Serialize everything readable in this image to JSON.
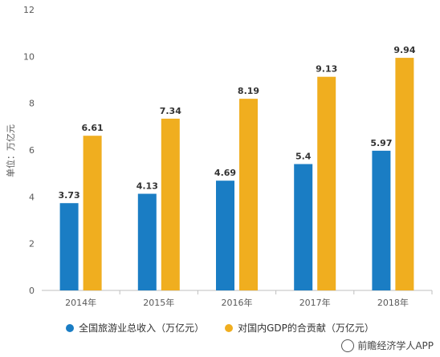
{
  "chart_data": {
    "type": "bar",
    "ylabel": "单位：万亿元",
    "ylim": [
      0,
      12
    ],
    "yticks": [
      0,
      2,
      4,
      6,
      8,
      10,
      12
    ],
    "categories": [
      "2014年",
      "2015年",
      "2016年",
      "2017年",
      "2018年"
    ],
    "series": [
      {
        "name": "全国旅游业总收入（万亿元）",
        "color": "#1a7dc4",
        "values": [
          3.73,
          4.13,
          4.69,
          5.4,
          5.97
        ],
        "labels": [
          "3.73",
          "4.13",
          "4.69",
          "5.4",
          "5.97"
        ]
      },
      {
        "name": "对国内GDP的合贡献（万亿元）",
        "color": "#f0ae1f",
        "values": [
          6.61,
          7.34,
          8.19,
          9.13,
          9.94
        ],
        "labels": [
          "6.61",
          "7.34",
          "8.19",
          "9.13",
          "9.94"
        ]
      }
    ],
    "grid": false,
    "legend": "bottom"
  },
  "watermark": "前瞻经济学人APP"
}
